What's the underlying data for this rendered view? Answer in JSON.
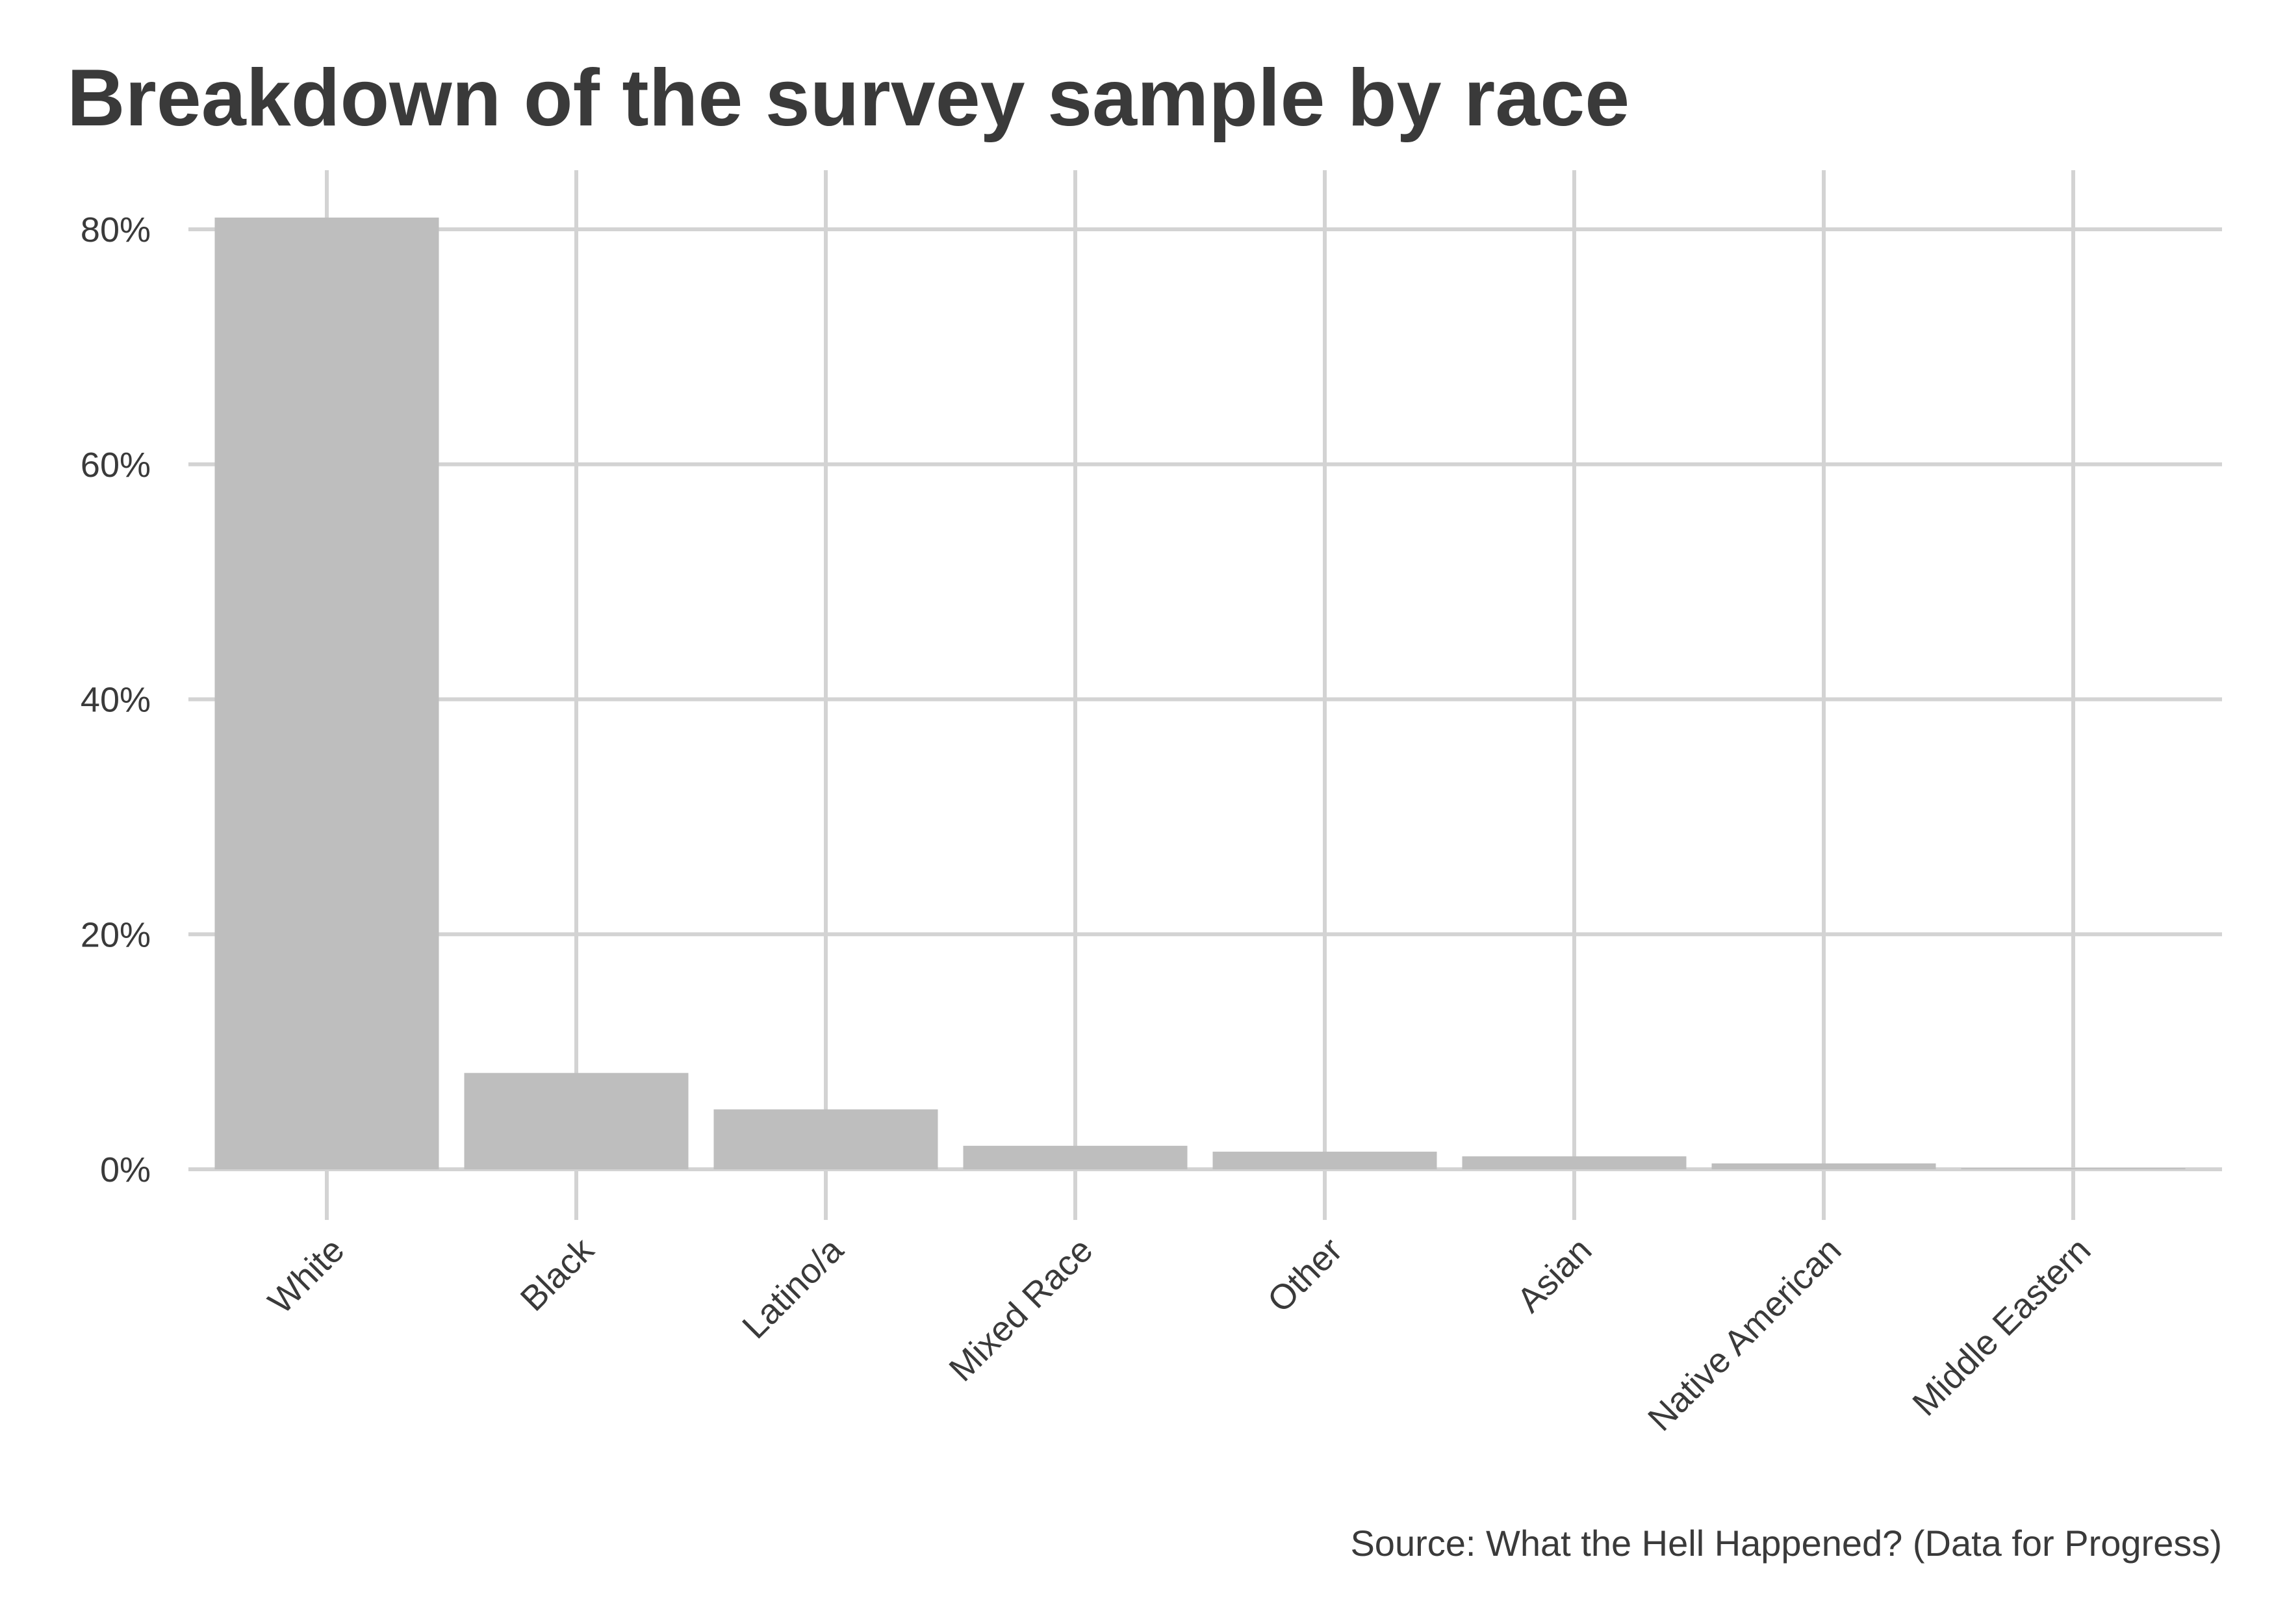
{
  "chart_data": {
    "type": "bar",
    "title": "Breakdown of the survey sample by race",
    "caption": "Source: What the Hell Happened? (Data for Progress)",
    "xlabel": "",
    "ylabel": "",
    "categories": [
      "White",
      "Black",
      "Latino/a",
      "Mixed Race",
      "Other",
      "Asian",
      "Native American",
      "Middle Eastern"
    ],
    "values": [
      81,
      8.2,
      5.1,
      2.0,
      1.5,
      1.1,
      0.5,
      0.1
    ],
    "value_format": "percent",
    "ylim": [
      0,
      85
    ],
    "yticks": [
      0,
      20,
      40,
      60,
      80
    ],
    "ytick_labels": [
      "0%",
      "20%",
      "40%",
      "60%",
      "80%"
    ],
    "grid": true,
    "legend": "none",
    "bar_color": "#bebebe",
    "grid_color": "#d3d3d3",
    "text_color": "#3a3a3a"
  }
}
